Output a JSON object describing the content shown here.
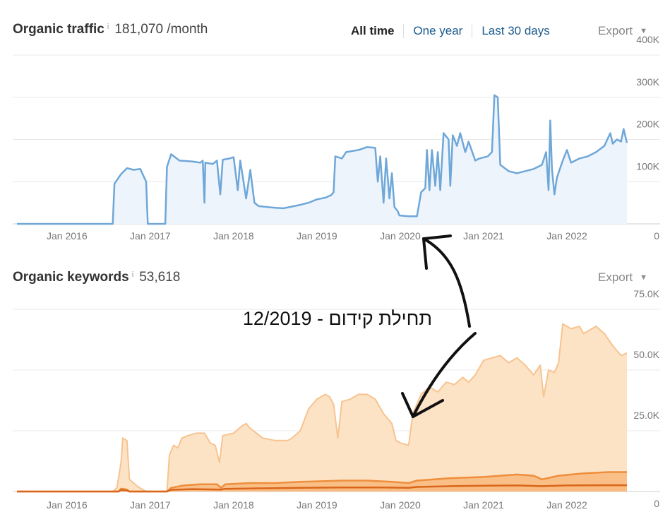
{
  "traffic_header": {
    "title": "Organic traffic",
    "info": "i",
    "value": "181,070 /month"
  },
  "keywords_header": {
    "title": "Organic keywords",
    "info": "i",
    "value": "53,618"
  },
  "range_buttons": [
    "All time",
    "One year",
    "Last 30 days"
  ],
  "export_label": "Export",
  "annotation": "תחילת קידום - 12/2019",
  "colors": {
    "traffic_line": "#6ea7d8",
    "traffic_fill": "#eef4fc",
    "kw_top_line": "#f7c38f",
    "kw_top_fill": "#fde3c6",
    "kw_mid_line": "#ee8e3c",
    "kw_mid_fill": "#f9ba80",
    "kw_low_line": "#d9661b",
    "grid": "#e8e8e8",
    "link": "#1a5a8c"
  },
  "chart_data": [
    {
      "type": "line",
      "title": "Organic traffic",
      "xlabel": "",
      "ylabel": "",
      "x_ticks": [
        "Jan 2016",
        "Jan 2017",
        "Jan 2018",
        "Jan 2019",
        "Jan 2020",
        "Jan 2021",
        "Jan 2022"
      ],
      "y_ticks": [
        "0",
        "100K",
        "200K",
        "300K",
        "400K"
      ],
      "ylim": [
        0,
        400000
      ],
      "xlim": [
        2015.4,
        2022.72
      ],
      "grid": true,
      "series": [
        {
          "values": [
            [
              2015.4,
              0
            ],
            [
              2016.55,
              0
            ],
            [
              2016.57,
              95000
            ],
            [
              2016.65,
              118000
            ],
            [
              2016.72,
              132000
            ],
            [
              2016.8,
              128000
            ],
            [
              2016.88,
              130000
            ],
            [
              2016.95,
              100000
            ],
            [
              2016.97,
              0
            ],
            [
              2017.18,
              0
            ],
            [
              2017.2,
              135000
            ],
            [
              2017.25,
              165000
            ],
            [
              2017.35,
              150000
            ],
            [
              2017.5,
              148000
            ],
            [
              2017.6,
              145000
            ],
            [
              2017.63,
              150000
            ],
            [
              2017.65,
              50000
            ],
            [
              2017.66,
              145000
            ],
            [
              2017.75,
              142000
            ],
            [
              2017.8,
              150000
            ],
            [
              2017.84,
              70000
            ],
            [
              2017.87,
              152000
            ],
            [
              2017.95,
              155000
            ],
            [
              2018.0,
              158000
            ],
            [
              2018.05,
              80000
            ],
            [
              2018.08,
              150000
            ],
            [
              2018.15,
              60000
            ],
            [
              2018.2,
              128000
            ],
            [
              2018.25,
              50000
            ],
            [
              2018.3,
              42000
            ],
            [
              2018.5,
              38000
            ],
            [
              2018.6,
              37000
            ],
            [
              2018.8,
              45000
            ],
            [
              2018.9,
              50000
            ],
            [
              2019.0,
              58000
            ],
            [
              2019.1,
              62000
            ],
            [
              2019.17,
              68000
            ],
            [
              2019.2,
              75000
            ],
            [
              2019.22,
              160000
            ],
            [
              2019.3,
              155000
            ],
            [
              2019.35,
              170000
            ],
            [
              2019.5,
              175000
            ],
            [
              2019.6,
              182000
            ],
            [
              2019.7,
              180000
            ],
            [
              2019.73,
              100000
            ],
            [
              2019.76,
              160000
            ],
            [
              2019.8,
              50000
            ],
            [
              2019.83,
              155000
            ],
            [
              2019.87,
              60000
            ],
            [
              2019.9,
              120000
            ],
            [
              2019.93,
              40000
            ],
            [
              2019.97,
              30000
            ],
            [
              2019.99,
              20000
            ],
            [
              2020.1,
              18000
            ],
            [
              2020.2,
              18000
            ],
            [
              2020.25,
              75000
            ],
            [
              2020.3,
              85000
            ],
            [
              2020.32,
              175000
            ],
            [
              2020.35,
              80000
            ],
            [
              2020.38,
              175000
            ],
            [
              2020.42,
              90000
            ],
            [
              2020.45,
              170000
            ],
            [
              2020.48,
              80000
            ],
            [
              2020.52,
              215000
            ],
            [
              2020.58,
              200000
            ],
            [
              2020.6,
              90000
            ],
            [
              2020.63,
              210000
            ],
            [
              2020.68,
              185000
            ],
            [
              2020.72,
              215000
            ],
            [
              2020.78,
              170000
            ],
            [
              2020.82,
              195000
            ],
            [
              2020.9,
              150000
            ],
            [
              2020.95,
              155000
            ],
            [
              2021.05,
              160000
            ],
            [
              2021.1,
              170000
            ],
            [
              2021.13,
              305000
            ],
            [
              2021.17,
              300000
            ],
            [
              2021.2,
              140000
            ],
            [
              2021.3,
              125000
            ],
            [
              2021.4,
              120000
            ],
            [
              2021.5,
              125000
            ],
            [
              2021.6,
              130000
            ],
            [
              2021.7,
              140000
            ],
            [
              2021.75,
              170000
            ],
            [
              2021.78,
              80000
            ],
            [
              2021.8,
              245000
            ],
            [
              2021.82,
              130000
            ],
            [
              2021.85,
              70000
            ],
            [
              2021.88,
              110000
            ],
            [
              2021.95,
              150000
            ],
            [
              2022.0,
              175000
            ],
            [
              2022.05,
              145000
            ],
            [
              2022.15,
              155000
            ],
            [
              2022.25,
              160000
            ],
            [
              2022.35,
              170000
            ],
            [
              2022.45,
              185000
            ],
            [
              2022.52,
              215000
            ],
            [
              2022.55,
              190000
            ],
            [
              2022.6,
              200000
            ],
            [
              2022.65,
              195000
            ],
            [
              2022.68,
              225000
            ],
            [
              2022.72,
              192000
            ]
          ]
        }
      ]
    },
    {
      "type": "area",
      "title": "Organic keywords",
      "xlabel": "",
      "ylabel": "",
      "x_ticks": [
        "Jan 2016",
        "Jan 2017",
        "Jan 2018",
        "Jan 2019",
        "Jan 2020",
        "Jan 2021",
        "Jan 2022"
      ],
      "y_ticks": [
        "0",
        "25.0K",
        "50.0K",
        "75.0K"
      ],
      "ylim": [
        0,
        75000
      ],
      "xlim": [
        2015.4,
        2022.72
      ],
      "grid": true,
      "series": [
        {
          "values": [
            [
              2015.4,
              0
            ],
            [
              2016.55,
              0
            ],
            [
              2016.6,
              1500
            ],
            [
              2016.65,
              12000
            ],
            [
              2016.67,
              22000
            ],
            [
              2016.72,
              21000
            ],
            [
              2016.75,
              5000
            ],
            [
              2016.85,
              2000
            ],
            [
              2016.95,
              0
            ],
            [
              2017.2,
              0
            ],
            [
              2017.23,
              15000
            ],
            [
              2017.28,
              19000
            ],
            [
              2017.33,
              18000
            ],
            [
              2017.38,
              22000
            ],
            [
              2017.45,
              23000
            ],
            [
              2017.55,
              24000
            ],
            [
              2017.65,
              24000
            ],
            [
              2017.72,
              20000
            ],
            [
              2017.78,
              19000
            ],
            [
              2017.83,
              12000
            ],
            [
              2017.87,
              23000
            ],
            [
              2018.0,
              24000
            ],
            [
              2018.1,
              27000
            ],
            [
              2018.15,
              28000
            ],
            [
              2018.2,
              26000
            ],
            [
              2018.35,
              22000
            ],
            [
              2018.5,
              21000
            ],
            [
              2018.65,
              21000
            ],
            [
              2018.7,
              22000
            ],
            [
              2018.8,
              25000
            ],
            [
              2018.9,
              34000
            ],
            [
              2019.0,
              38000
            ],
            [
              2019.1,
              40000
            ],
            [
              2019.15,
              39000
            ],
            [
              2019.2,
              36000
            ],
            [
              2019.25,
              22000
            ],
            [
              2019.3,
              37000
            ],
            [
              2019.4,
              38000
            ],
            [
              2019.5,
              40000
            ],
            [
              2019.6,
              40000
            ],
            [
              2019.7,
              38000
            ],
            [
              2019.8,
              32000
            ],
            [
              2019.9,
              28000
            ],
            [
              2019.95,
              21000
            ],
            [
              2020.0,
              20000
            ],
            [
              2020.1,
              19000
            ],
            [
              2020.15,
              32000
            ],
            [
              2020.25,
              40000
            ],
            [
              2020.35,
              43000
            ],
            [
              2020.45,
              41000
            ],
            [
              2020.55,
              45000
            ],
            [
              2020.65,
              44000
            ],
            [
              2020.75,
              47000
            ],
            [
              2020.82,
              45000
            ],
            [
              2020.9,
              48000
            ],
            [
              2021.0,
              54000
            ],
            [
              2021.1,
              55000
            ],
            [
              2021.2,
              56000
            ],
            [
              2021.3,
              53000
            ],
            [
              2021.4,
              55000
            ],
            [
              2021.5,
              52000
            ],
            [
              2021.6,
              48000
            ],
            [
              2021.68,
              52000
            ],
            [
              2021.72,
              39000
            ],
            [
              2021.78,
              50000
            ],
            [
              2021.85,
              49000
            ],
            [
              2021.9,
              53000
            ],
            [
              2021.95,
              69000
            ],
            [
              2022.05,
              67000
            ],
            [
              2022.15,
              68000
            ],
            [
              2022.2,
              65000
            ],
            [
              2022.3,
              67000
            ],
            [
              2022.35,
              68000
            ],
            [
              2022.45,
              65000
            ],
            [
              2022.55,
              60000
            ],
            [
              2022.65,
              56000
            ],
            [
              2022.72,
              57000
            ]
          ]
        },
        {
          "values": [
            [
              2015.4,
              0
            ],
            [
              2016.62,
              0
            ],
            [
              2016.65,
              1200
            ],
            [
              2016.72,
              800
            ],
            [
              2016.75,
              0
            ],
            [
              2017.2,
              0
            ],
            [
              2017.25,
              1500
            ],
            [
              2017.4,
              2500
            ],
            [
              2017.6,
              3000
            ],
            [
              2017.8,
              3000
            ],
            [
              2017.85,
              1500
            ],
            [
              2017.9,
              3000
            ],
            [
              2018.2,
              3500
            ],
            [
              2018.5,
              3500
            ],
            [
              2018.8,
              4000
            ],
            [
              2019.0,
              4200
            ],
            [
              2019.3,
              4500
            ],
            [
              2019.6,
              4500
            ],
            [
              2019.9,
              4000
            ],
            [
              2020.1,
              3500
            ],
            [
              2020.2,
              4500
            ],
            [
              2020.6,
              5500
            ],
            [
              2021.0,
              6000
            ],
            [
              2021.4,
              7000
            ],
            [
              2021.6,
              6500
            ],
            [
              2021.7,
              5000
            ],
            [
              2021.9,
              6500
            ],
            [
              2022.2,
              7500
            ],
            [
              2022.5,
              8000
            ],
            [
              2022.72,
              8000
            ]
          ]
        },
        {
          "values": [
            [
              2015.4,
              0
            ],
            [
              2016.62,
              0
            ],
            [
              2016.65,
              600
            ],
            [
              2016.72,
              400
            ],
            [
              2016.75,
              0
            ],
            [
              2017.2,
              0
            ],
            [
              2017.25,
              700
            ],
            [
              2017.5,
              1000
            ],
            [
              2017.85,
              800
            ],
            [
              2017.9,
              1100
            ],
            [
              2018.3,
              1300
            ],
            [
              2018.8,
              1500
            ],
            [
              2019.3,
              1700
            ],
            [
              2019.8,
              1700
            ],
            [
              2020.1,
              1500
            ],
            [
              2020.2,
              1900
            ],
            [
              2020.6,
              2200
            ],
            [
              2021.0,
              2400
            ],
            [
              2021.4,
              2500
            ],
            [
              2021.7,
              2200
            ],
            [
              2022.0,
              2500
            ],
            [
              2022.4,
              2600
            ],
            [
              2022.72,
              2600
            ]
          ]
        }
      ]
    }
  ]
}
